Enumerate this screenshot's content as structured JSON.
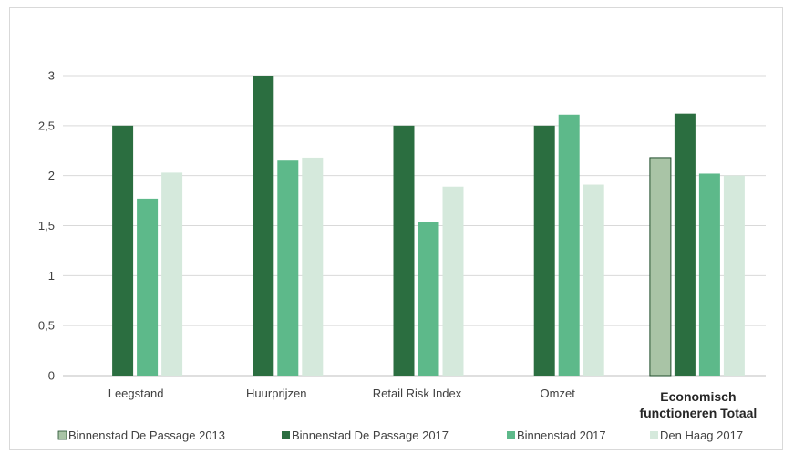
{
  "chart_data": {
    "type": "bar",
    "categories": [
      [
        "Leegstand"
      ],
      [
        "Huurprijzen"
      ],
      [
        "Retail Risk Index"
      ],
      [
        "Omzet"
      ],
      [
        "Economisch",
        "functioneren Totaal"
      ]
    ],
    "category_bold": [
      false,
      false,
      false,
      false,
      true
    ],
    "series": [
      {
        "name": "Binnenstad De Passage 2013",
        "color": "#a9c4a6",
        "values": [
          null,
          null,
          null,
          null,
          2.18
        ]
      },
      {
        "name": "Binnenstad De Passage 2017",
        "color": "#2b6e40",
        "values": [
          2.5,
          3.0,
          2.5,
          2.5,
          2.62
        ]
      },
      {
        "name": "Binnenstad 2017",
        "color": "#5db98a",
        "values": [
          1.77,
          2.15,
          1.54,
          2.61,
          2.02
        ]
      },
      {
        "name": "Den Haag 2017",
        "color": "#d5e9dc",
        "values": [
          2.03,
          2.18,
          1.89,
          1.91,
          2.0
        ]
      }
    ],
    "y_ticks": [
      "0",
      "0,5",
      "1",
      "1,5",
      "2",
      "2,5",
      "3"
    ],
    "ylim": [
      0,
      3
    ],
    "grid": true,
    "legend_position": "bottom"
  }
}
